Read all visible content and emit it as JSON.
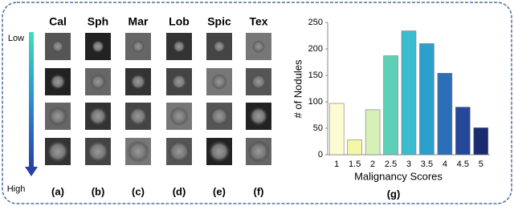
{
  "panel": {
    "columns": [
      "Cal",
      "Sph",
      "Mar",
      "Lob",
      "Spic",
      "Tex"
    ],
    "low": "Low",
    "high": "High",
    "labels": [
      "(a)",
      "(b)",
      "(c)",
      "(d)",
      "(e)",
      "(f)"
    ]
  },
  "chart_data": {
    "type": "bar",
    "panel_label": "(g)",
    "x_label": "Malignancy Scores",
    "y_label": "# of Nodules",
    "categories": [
      "1",
      "1.5",
      "2",
      "2.5",
      "3",
      "3.5",
      "4",
      "4.5",
      "5"
    ],
    "values": [
      97,
      28,
      85,
      187,
      234,
      210,
      154,
      90,
      51
    ],
    "colors": [
      "#fdfbd2",
      "#f5f7a8",
      "#d6f0b8",
      "#5fd0b8",
      "#3bbccf",
      "#2d9fcc",
      "#2a6fb8",
      "#24489a",
      "#1c2a70"
    ],
    "ylim": [
      0,
      250
    ],
    "yticks": [
      0,
      50,
      100,
      150,
      200,
      250
    ]
  }
}
